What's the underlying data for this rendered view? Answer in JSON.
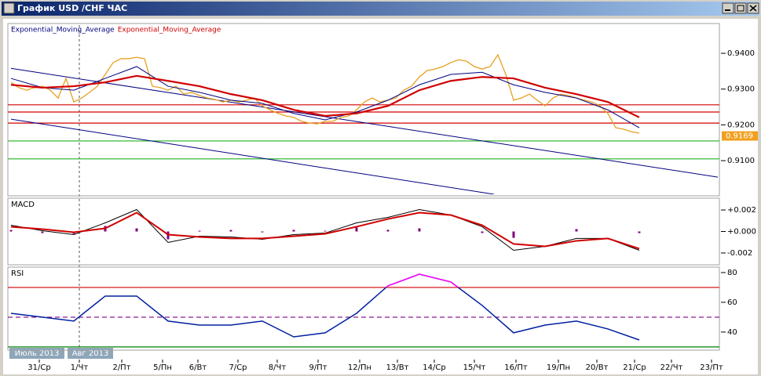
{
  "window": {
    "title": "График USD /CHF ЧАС"
  },
  "months": [
    "Июль 2013",
    "Авг 2013"
  ],
  "x_axis": {
    "xlim": [
      0,
      90
    ],
    "xticks": [
      {
        "value": 3.6,
        "label": "31/Ср"
      },
      {
        "value": 8.7,
        "label": "1/Чт"
      },
      {
        "value": 14.1,
        "label": "2/Пт"
      },
      {
        "value": 19.3,
        "label": "5/Пн"
      },
      {
        "value": 23.8,
        "label": "6/Вт"
      },
      {
        "value": 28.9,
        "label": "7/Ср"
      },
      {
        "value": 33.9,
        "label": "8/Чт"
      },
      {
        "value": 39.1,
        "label": "9/Пт"
      },
      {
        "value": 44.4,
        "label": "12/Пн"
      },
      {
        "value": 49.2,
        "label": "13/Вт"
      },
      {
        "value": 53.9,
        "label": "14/Ср"
      },
      {
        "value": 59.0,
        "label": "15/Чт"
      },
      {
        "value": 64.3,
        "label": "16/Пт"
      },
      {
        "value": 69.7,
        "label": "19/Пн"
      },
      {
        "value": 74.6,
        "label": "20/Вт"
      },
      {
        "value": 79.4,
        "label": "21/Ср"
      },
      {
        "value": 84.1,
        "label": "22/Чт"
      },
      {
        "value": 89.2,
        "label": "23/Пт"
      }
    ]
  },
  "chart_data": [
    {
      "type": "line",
      "ylim": [
        0.9006,
        0.9479
      ],
      "yticks": [
        {
          "value": 0.91,
          "label": "0.9100"
        },
        {
          "value": 0.92,
          "label": "0.9200"
        },
        {
          "value": 0.93,
          "label": "0.9300"
        },
        {
          "value": 0.94,
          "label": "0.9400"
        }
      ],
      "last_price": 0.9169,
      "last_price_color": "#f0a020",
      "levels": [
        {
          "value": 0.9256,
          "color": "#d00000"
        },
        {
          "value": 0.9236,
          "color": "#d00000"
        },
        {
          "value": 0.9205,
          "color": "#d00000"
        },
        {
          "value": 0.9155,
          "color": "#20b020"
        },
        {
          "value": 0.9105,
          "color": "#20b020"
        }
      ],
      "trendlines": [
        {
          "x": [
            0,
            90
          ],
          "values": [
            0.9358,
            0.9054
          ],
          "color": "#000080"
        },
        {
          "x": [
            0,
            61.5
          ],
          "values": [
            0.9216,
            0.9006
          ],
          "color": "#000080"
        }
      ],
      "series": [
        {
          "color": "#e8a020",
          "width": 1.3,
          "x": [
            0,
            1,
            2,
            3,
            4,
            5,
            6,
            7,
            8,
            9,
            10,
            11,
            12,
            13,
            14,
            15,
            16,
            17,
            18,
            19,
            20,
            21,
            22,
            23,
            24,
            25,
            26,
            27,
            28,
            29,
            30,
            31,
            32,
            33,
            34,
            35,
            36,
            37,
            38,
            39,
            40,
            41,
            42,
            43,
            44,
            45,
            46,
            47,
            48,
            49,
            50,
            51,
            52,
            53,
            54,
            55,
            56,
            57,
            58,
            59,
            60,
            61,
            62,
            63,
            64,
            65,
            66,
            67,
            68,
            69,
            70,
            71,
            72,
            73,
            74,
            75,
            76,
            77,
            78,
            79,
            80
          ],
          "values": [
            0.9319,
            0.9304,
            0.9297,
            0.9304,
            0.9308,
            0.9297,
            0.9275,
            0.933,
            0.9264,
            0.9275,
            0.9291,
            0.9308,
            0.9341,
            0.9374,
            0.9385,
            0.9385,
            0.9389,
            0.9385,
            0.9308,
            0.9304,
            0.9297,
            0.9308,
            0.9286,
            0.9291,
            0.9282,
            0.9275,
            0.9271,
            0.9264,
            0.9269,
            0.9264,
            0.9269,
            0.9275,
            0.9253,
            0.9242,
            0.9232,
            0.9225,
            0.9221,
            0.921,
            0.9205,
            0.9203,
            0.921,
            0.921,
            0.9221,
            0.9225,
            0.9242,
            0.9264,
            0.9275,
            0.9264,
            0.9269,
            0.9275,
            0.9297,
            0.9308,
            0.9334,
            0.9352,
            0.9356,
            0.9363,
            0.9374,
            0.9382,
            0.9378,
            0.9363,
            0.9356,
            0.9363,
            0.9396,
            0.9341,
            0.9269,
            0.9275,
            0.9286,
            0.9269,
            0.9253,
            0.9275,
            0.9286,
            0.9282,
            0.9275,
            0.9269,
            0.9264,
            0.9253,
            0.9232,
            0.9192,
            0.9188,
            0.9181,
            0.9177
          ]
        },
        {
          "name": "Exponential_Moving_Average",
          "color": "#000080",
          "width": 1,
          "x": [
            0,
            4,
            8,
            12,
            16,
            20,
            24,
            28,
            32,
            36,
            40,
            44,
            48,
            52,
            56,
            60,
            64,
            68,
            72,
            76,
            80
          ],
          "values": [
            0.933,
            0.9304,
            0.9297,
            0.933,
            0.9363,
            0.9308,
            0.9291,
            0.9269,
            0.926,
            0.9232,
            0.9214,
            0.9236,
            0.9269,
            0.9312,
            0.9341,
            0.9347,
            0.9312,
            0.9291,
            0.9275,
            0.9242,
            0.9192
          ]
        },
        {
          "name": "Exponential_Moving_Average",
          "color": "#d00000",
          "width": 2.2,
          "x": [
            0,
            4,
            8,
            12,
            16,
            20,
            24,
            28,
            32,
            36,
            40,
            44,
            48,
            52,
            56,
            60,
            64,
            68,
            72,
            76,
            80
          ],
          "values": [
            0.9312,
            0.9304,
            0.9308,
            0.9319,
            0.9337,
            0.9323,
            0.9308,
            0.9286,
            0.9269,
            0.9242,
            0.9225,
            0.9232,
            0.9253,
            0.9297,
            0.9323,
            0.9334,
            0.933,
            0.9304,
            0.9286,
            0.9264,
            0.9221
          ]
        }
      ]
    },
    {
      "type": "line",
      "title": "MACD",
      "ylim": [
        -0.00295,
        0.00295
      ],
      "yticks": [
        {
          "value": -0.002,
          "label": "-0.002"
        },
        {
          "value": 0,
          "label": "+0.000"
        },
        {
          "value": 0.002,
          "label": "+0.002"
        }
      ],
      "series": [
        {
          "type": "bar",
          "color": "#800080",
          "x": [
            0,
            4,
            8,
            12,
            16,
            20,
            24,
            28,
            32,
            36,
            40,
            44,
            48,
            52,
            56,
            60,
            64,
            68,
            72,
            76,
            80
          ],
          "values": [
            0.00014,
            -0.00015,
            -0.00022,
            0.00051,
            0.00029,
            -0.00073,
            7e-05,
            0.00014,
            -8e-05,
            0.00015,
            7e-05,
            0.00036,
            0.00015,
            0.00029,
            0,
            -0.00014,
            -0.00059,
            0,
            0.00022,
            0,
            -0.00015
          ]
        },
        {
          "color": "#000000",
          "width": 1,
          "x": [
            0,
            4,
            8,
            12,
            16,
            20,
            24,
            28,
            32,
            36,
            40,
            44,
            48,
            52,
            56,
            60,
            64,
            68,
            72,
            76,
            80
          ],
          "values": [
            0.00058,
            7e-05,
            -0.00029,
            0.0008,
            0.00204,
            -0.00102,
            -0.00044,
            -0.00051,
            -0.00073,
            -0.00029,
            -0.00015,
            0.0008,
            0.00131,
            0.00204,
            0.00153,
            0.00044,
            -0.00175,
            -0.00138,
            -0.00065,
            -0.00065,
            -0.00175
          ]
        },
        {
          "color": "#d00000",
          "width": 2,
          "x": [
            0,
            4,
            8,
            12,
            16,
            20,
            24,
            28,
            32,
            36,
            40,
            44,
            48,
            52,
            56,
            60,
            64,
            68,
            72,
            76,
            80
          ],
          "values": [
            0.00044,
            0.00022,
            -7e-05,
            0.00029,
            0.00175,
            -0.00029,
            -0.00051,
            -0.00065,
            -0.00065,
            -0.00044,
            -0.00022,
            0.00044,
            0.00116,
            0.00175,
            0.00153,
            0.00058,
            -0.00116,
            -0.00138,
            -0.00087,
            -0.00065,
            -0.0016
          ]
        }
      ]
    },
    {
      "type": "line",
      "title": "RSI",
      "ylim": [
        28.9,
        82.6
      ],
      "yticks": [
        40,
        60,
        80
      ],
      "levels": [
        {
          "value": 70,
          "color": "#d00000"
        },
        {
          "value": 50,
          "color": "#800080",
          "dashed": true
        },
        {
          "value": 30,
          "color": "#008000"
        }
      ],
      "series": [
        {
          "color": "#0020a0",
          "color_above": "#ff00ff",
          "width": 1.5,
          "x": [
            0,
            4,
            8,
            12,
            16,
            20,
            24,
            28,
            32,
            36,
            40,
            44,
            48,
            52,
            56,
            60,
            64,
            68,
            72,
            76,
            80
          ],
          "values": [
            52.6,
            50,
            47.4,
            64.2,
            64.2,
            47.4,
            44.7,
            44.7,
            47.4,
            36.8,
            39.5,
            52.6,
            71.1,
            78.9,
            73.7,
            57.9,
            39.5,
            44.7,
            47.4,
            42.1,
            34.7
          ]
        }
      ]
    }
  ]
}
